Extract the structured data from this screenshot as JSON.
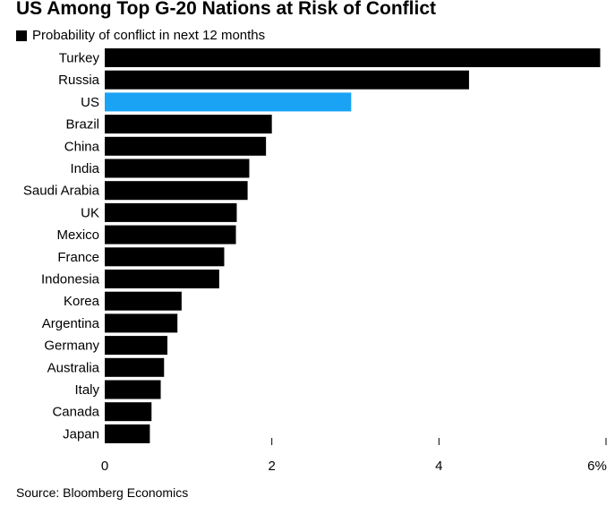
{
  "chart_data": {
    "type": "bar",
    "orientation": "horizontal",
    "title": "US Among Top G-20 Nations at Risk of Conflict",
    "legend": "Probability of conflict in next 12 months",
    "categories": [
      "Turkey",
      "Russia",
      "US",
      "Brazil",
      "China",
      "India",
      "Saudi Arabia",
      "UK",
      "Mexico",
      "France",
      "Indonesia",
      "Korea",
      "Argentina",
      "Germany",
      "Australia",
      "Italy",
      "Canada",
      "Japan"
    ],
    "values": [
      5.93,
      4.36,
      2.95,
      2.0,
      1.93,
      1.73,
      1.71,
      1.58,
      1.57,
      1.43,
      1.37,
      0.92,
      0.87,
      0.75,
      0.71,
      0.67,
      0.56,
      0.54
    ],
    "highlight": "US",
    "xlim": [
      0,
      6
    ],
    "xticks": [
      "0",
      "2",
      "4",
      "6%"
    ],
    "xtick_values": [
      0,
      2,
      4,
      6
    ],
    "colors": {
      "bar": "#000000",
      "highlight": "#1aa3f5"
    },
    "grid": false
  },
  "source": "Source: Bloomberg Economics"
}
